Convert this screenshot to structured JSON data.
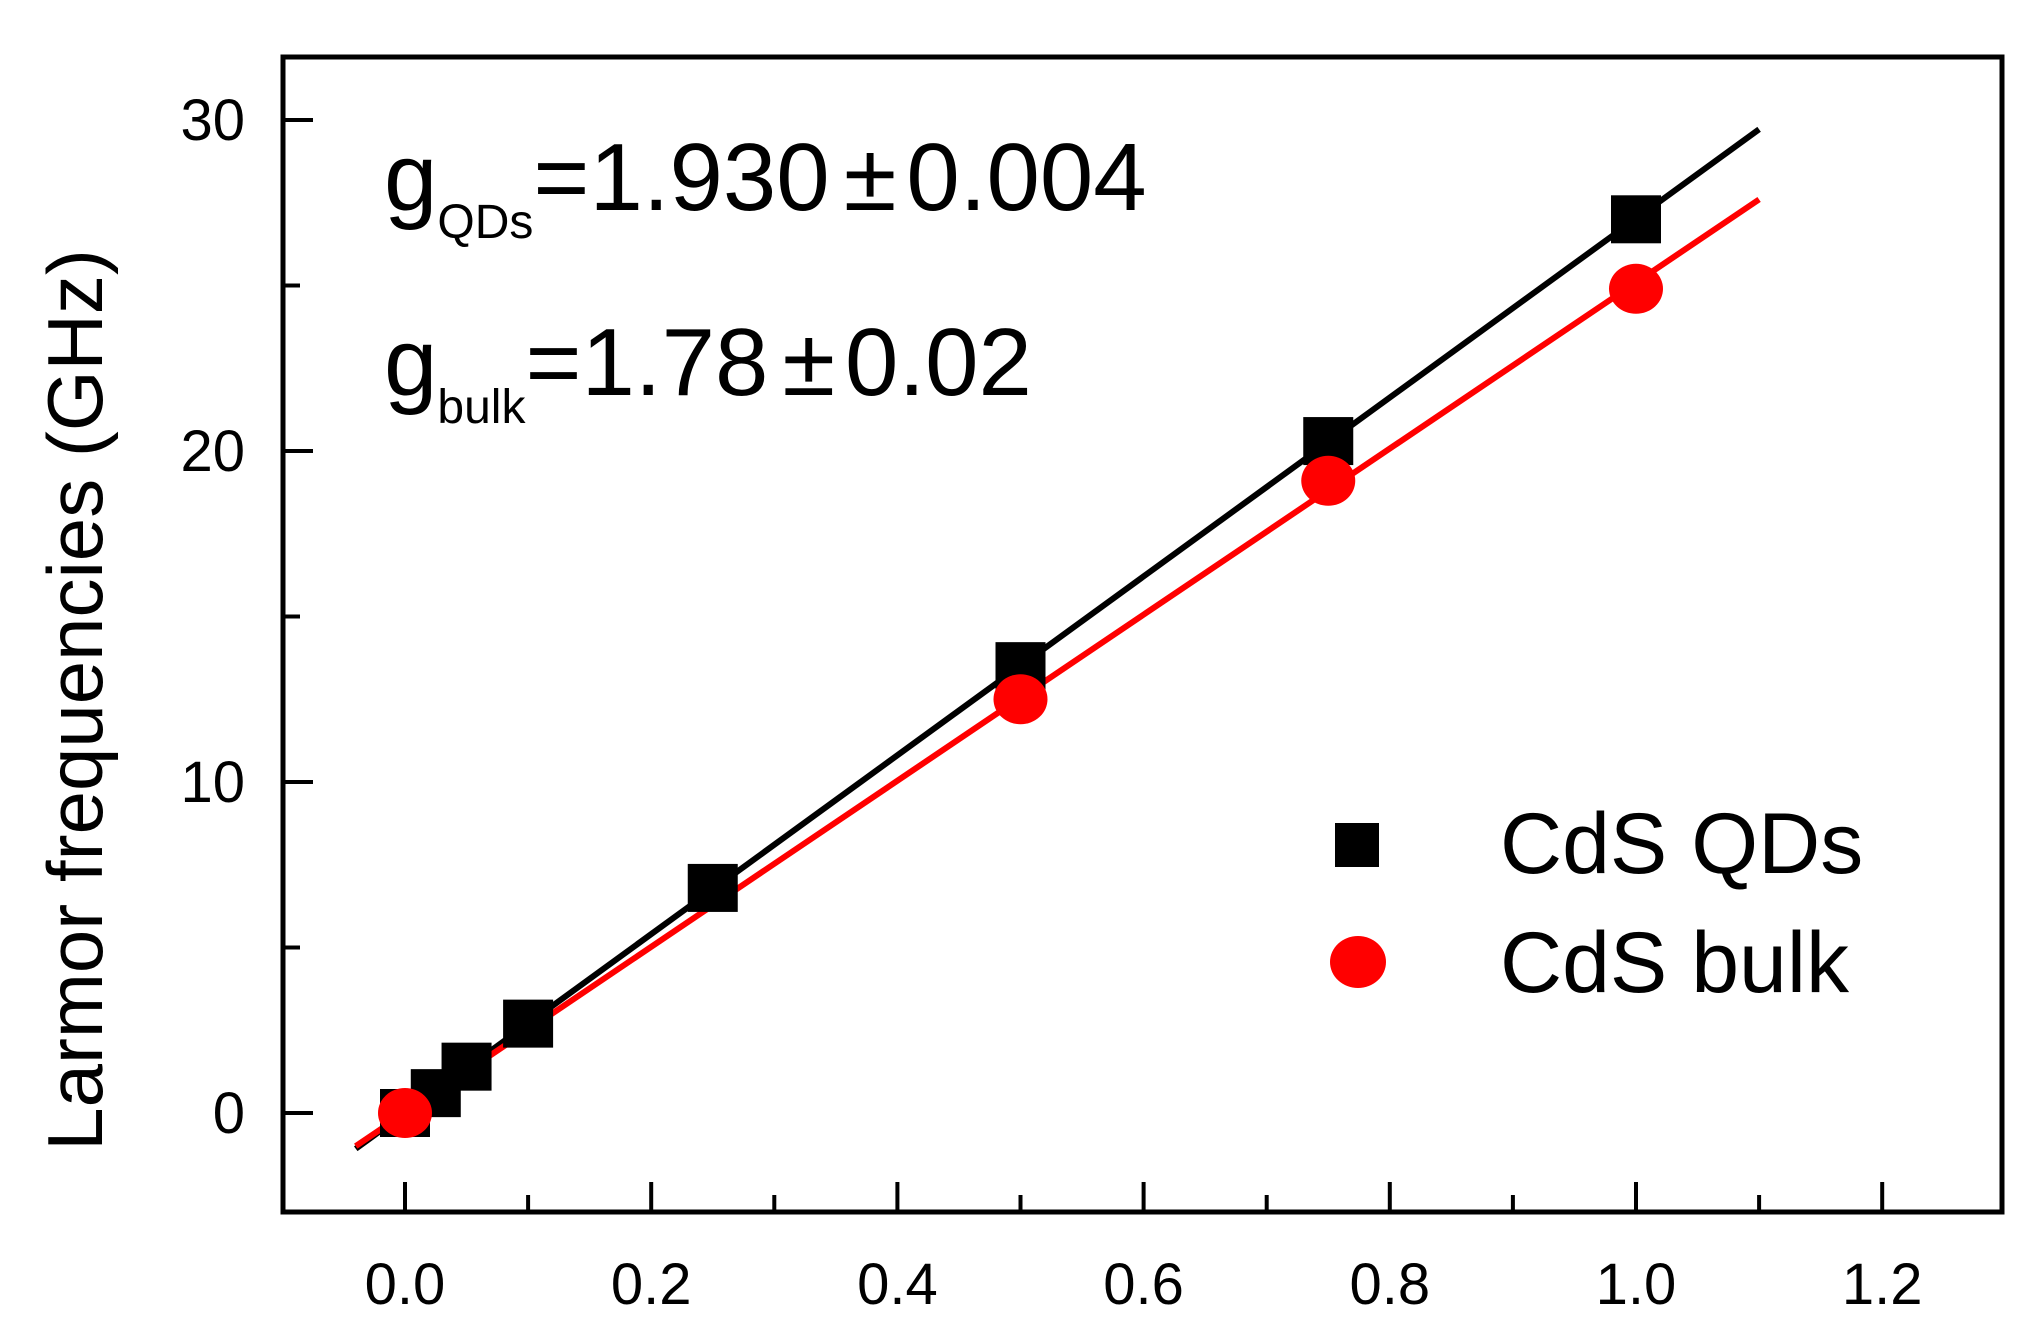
{
  "chart_data": {
    "type": "scatter",
    "title": "",
    "xlabel": "",
    "ylabel": "Larmor frequencies (GHz)",
    "xlim": [
      -0.1,
      1.25
    ],
    "ylim": [
      -3,
      32
    ],
    "xticks": [
      "0.0",
      "0.2",
      "0.4",
      "0.6",
      "0.8",
      "1.0",
      "1.2"
    ],
    "yticks": [
      "0",
      "10",
      "20",
      "30"
    ],
    "grid": false,
    "legend_position": "lower-right",
    "series": [
      {
        "name": "CdS QDs",
        "marker": "square",
        "color": "#000000",
        "x": [
          0.0,
          0.025,
          0.05,
          0.1,
          0.25,
          0.5,
          0.75,
          1.0
        ],
        "y": [
          0.0,
          0.6,
          1.4,
          2.7,
          6.8,
          13.5,
          20.3,
          27.0
        ],
        "fit": {
          "x": [
            -0.04,
            1.1
          ],
          "y": [
            -1.08,
            29.72
          ],
          "color": "#000000"
        }
      },
      {
        "name": "CdS bulk",
        "marker": "circle",
        "color": "#ff0000",
        "x": [
          0.0,
          0.5,
          0.75,
          1.0
        ],
        "y": [
          0.0,
          12.5,
          19.1,
          24.9
        ],
        "fit": {
          "x": [
            -0.04,
            1.1
          ],
          "y": [
            -1.0,
            27.6
          ],
          "color": "#ff0000"
        }
      }
    ],
    "annotations": [
      {
        "base": "g",
        "sub": "QDs",
        "text": "=1.930",
        "pm": "±",
        "err": "0.004"
      },
      {
        "base": "g",
        "sub": "bulk",
        "text": "=1.78",
        "pm": "±",
        "err": "0.02"
      }
    ]
  }
}
